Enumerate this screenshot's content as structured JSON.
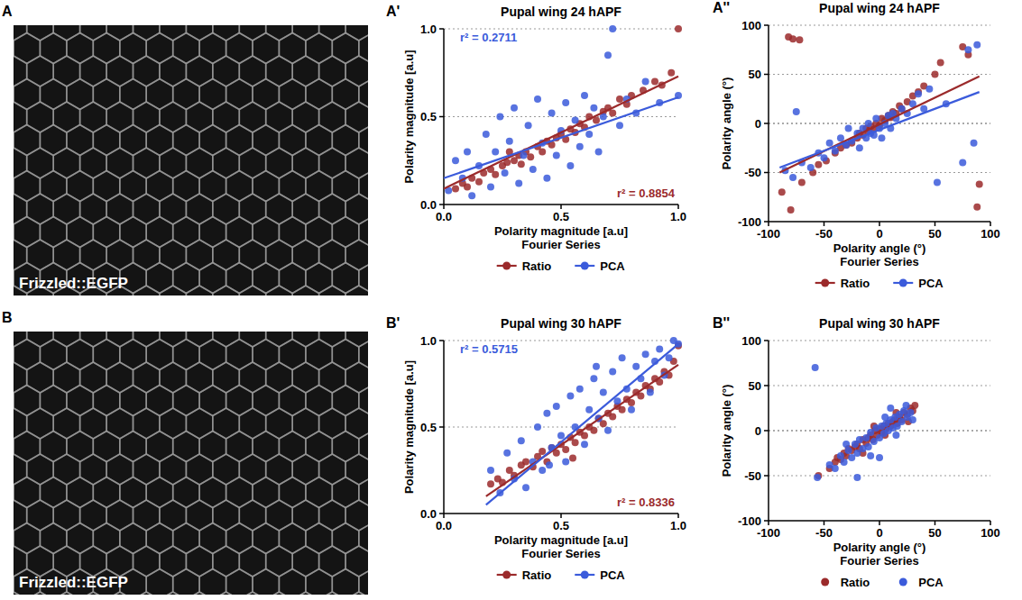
{
  "images": [
    {
      "letter": "A",
      "label": "Frizzled::EGFP"
    },
    {
      "letter": "B",
      "label": "Frizzled::EGFP"
    }
  ],
  "chart_data": [
    {
      "type": "scatter",
      "letter": "A'",
      "title": "Pupal wing 24 hAPF",
      "x_label": "Polarity magnitude [a.u]",
      "x_sublabel": "Fourier Series",
      "y_label": "Polarity magnitude [a.u]",
      "xlim": [
        0,
        1
      ],
      "xticks": [
        {
          "value": 0,
          "label": "0.0"
        },
        {
          "value": 0.5,
          "label": "0.5"
        },
        {
          "value": 1,
          "label": "1.0"
        }
      ],
      "ylim": [
        0,
        1
      ],
      "yticks": [
        {
          "value": 0,
          "label": "0.0"
        },
        {
          "value": 0.5,
          "label": "0.5"
        },
        {
          "value": 1,
          "label": "1.0"
        }
      ],
      "grid": true,
      "legend": "bottom",
      "annotations": [
        {
          "text": "r² = 0.2711",
          "color": "#3b5bdb"
        },
        {
          "text": "r² = 0.8854",
          "color": "#9b2a2b"
        }
      ],
      "series": [
        {
          "name": "Ratio",
          "color": "#9b2a2b",
          "marker": "circle",
          "x": [
            0.05,
            0.08,
            0.1,
            0.12,
            0.15,
            0.17,
            0.2,
            0.22,
            0.25,
            0.27,
            0.3,
            0.32,
            0.33,
            0.35,
            0.37,
            0.4,
            0.42,
            0.44,
            0.46,
            0.48,
            0.5,
            0.52,
            0.54,
            0.56,
            0.58,
            0.6,
            0.62,
            0.65,
            0.68,
            0.7,
            0.72,
            0.75,
            0.78,
            0.8,
            0.85,
            0.9,
            0.93,
            0.97,
            1.0,
            0.28
          ],
          "values": [
            0.09,
            0.12,
            0.1,
            0.15,
            0.13,
            0.18,
            0.2,
            0.17,
            0.22,
            0.24,
            0.25,
            0.28,
            0.23,
            0.3,
            0.27,
            0.33,
            0.3,
            0.36,
            0.34,
            0.38,
            0.4,
            0.37,
            0.43,
            0.41,
            0.46,
            0.44,
            0.5,
            0.48,
            0.53,
            0.55,
            0.52,
            0.6,
            0.57,
            0.62,
            0.65,
            0.7,
            0.68,
            0.75,
            1.0,
            0.3
          ],
          "fit": {
            "x": [
              0,
              1
            ],
            "values": [
              0.09,
              0.73
            ]
          }
        },
        {
          "name": "PCA",
          "color": "#3b5bdb",
          "marker": "circle",
          "x": [
            0.02,
            0.05,
            0.08,
            0.1,
            0.12,
            0.15,
            0.18,
            0.2,
            0.22,
            0.24,
            0.26,
            0.28,
            0.3,
            0.32,
            0.34,
            0.36,
            0.38,
            0.4,
            0.42,
            0.44,
            0.46,
            0.48,
            0.5,
            0.52,
            0.54,
            0.56,
            0.58,
            0.6,
            0.62,
            0.64,
            0.66,
            0.68,
            0.7,
            0.72,
            0.75,
            0.78,
            0.82,
            0.86,
            0.92,
            1.0
          ],
          "values": [
            0.08,
            0.25,
            0.15,
            0.3,
            0.05,
            0.22,
            0.4,
            0.1,
            0.3,
            0.5,
            0.18,
            0.36,
            0.55,
            0.12,
            0.28,
            0.45,
            0.2,
            0.6,
            0.35,
            0.15,
            0.52,
            0.28,
            0.42,
            0.58,
            0.22,
            0.48,
            0.33,
            0.62,
            0.4,
            0.55,
            0.3,
            0.5,
            0.85,
            1.0,
            0.45,
            0.6,
            0.52,
            0.7,
            0.58,
            0.62
          ],
          "fit": {
            "x": [
              0,
              1
            ],
            "values": [
              0.15,
              0.61
            ]
          }
        }
      ]
    },
    {
      "type": "scatter",
      "letter": "A''",
      "title": "Pupal wing 24 hAPF",
      "x_label": "Polarity angle (°)",
      "x_sublabel": "Fourier Series",
      "y_label": "Polarity angle (°)",
      "xlim": [
        -100,
        100
      ],
      "xticks": [
        -100,
        -50,
        0,
        50,
        100
      ],
      "ylim": [
        -100,
        100
      ],
      "yticks": [
        -100,
        -50,
        0,
        50,
        100
      ],
      "grid": true,
      "legend": "bottom",
      "annotations": [],
      "series": [
        {
          "name": "Ratio",
          "color": "#9b2a2b",
          "marker": "circle",
          "x": [
            -82,
            -78,
            -72,
            -88,
            -80,
            -70,
            -60,
            -55,
            -48,
            -40,
            -35,
            -30,
            -25,
            -20,
            -18,
            -15,
            -12,
            -10,
            -8,
            -5,
            -3,
            0,
            2,
            5,
            8,
            10,
            12,
            15,
            18,
            20,
            25,
            30,
            35,
            40,
            50,
            55,
            75,
            80,
            88,
            90
          ],
          "values": [
            88,
            86,
            85,
            -70,
            -88,
            -60,
            -50,
            -42,
            -38,
            -30,
            -25,
            -22,
            -20,
            -15,
            -10,
            -12,
            -5,
            -8,
            -3,
            -6,
            0,
            -2,
            5,
            3,
            8,
            6,
            12,
            10,
            18,
            15,
            22,
            28,
            32,
            38,
            50,
            62,
            78,
            70,
            -85,
            -62
          ],
          "fit": {
            "x": [
              -90,
              90
            ],
            "values": [
              -50,
              48
            ]
          }
        },
        {
          "name": "PCA",
          "color": "#3b5bdb",
          "marker": "circle",
          "x": [
            -85,
            -78,
            -75,
            -70,
            -62,
            -55,
            -50,
            -45,
            -40,
            -35,
            -30,
            -28,
            -25,
            -20,
            -18,
            -15,
            -12,
            -10,
            -8,
            -5,
            -3,
            0,
            2,
            5,
            8,
            10,
            12,
            15,
            20,
            25,
            30,
            35,
            40,
            45,
            52,
            60,
            75,
            80,
            85,
            88
          ],
          "values": [
            -48,
            -55,
            12,
            -40,
            -45,
            -30,
            -35,
            -20,
            -28,
            -15,
            -22,
            -5,
            -18,
            -10,
            -25,
            -5,
            -15,
            0,
            -10,
            -12,
            5,
            -5,
            -15,
            0,
            8,
            -5,
            10,
            5,
            15,
            10,
            20,
            30,
            15,
            35,
            -60,
            20,
            -40,
            75,
            -20,
            80
          ],
          "fit": {
            "x": [
              -90,
              90
            ],
            "values": [
              -45,
              32
            ]
          }
        }
      ]
    },
    {
      "type": "scatter",
      "letter": "B'",
      "title": "Pupal wing 30 hAPF",
      "x_label": "Polarity magnitude [a.u]",
      "x_sublabel": "Fourier Series",
      "y_label": "Polarity magnitude [a.u]",
      "xlim": [
        0,
        1
      ],
      "xticks": [
        {
          "value": 0,
          "label": "0.0"
        },
        {
          "value": 0.5,
          "label": "0.5"
        },
        {
          "value": 1,
          "label": "1.0"
        }
      ],
      "ylim": [
        0,
        1
      ],
      "yticks": [
        {
          "value": 0,
          "label": "0.0"
        },
        {
          "value": 0.5,
          "label": "0.5"
        },
        {
          "value": 1,
          "label": "1.0"
        }
      ],
      "grid": true,
      "legend": "bottom",
      "annotations": [
        {
          "text": "r² = 0.5715",
          "color": "#3b5bdb"
        },
        {
          "text": "r² = 0.8336",
          "color": "#9b2a2b"
        }
      ],
      "series": [
        {
          "name": "Ratio",
          "color": "#9b2a2b",
          "marker": "circle",
          "x": [
            0.2,
            0.23,
            0.25,
            0.28,
            0.3,
            0.33,
            0.35,
            0.38,
            0.4,
            0.42,
            0.44,
            0.46,
            0.48,
            0.5,
            0.52,
            0.54,
            0.56,
            0.58,
            0.6,
            0.62,
            0.64,
            0.66,
            0.68,
            0.7,
            0.72,
            0.74,
            0.76,
            0.78,
            0.8,
            0.82,
            0.84,
            0.86,
            0.88,
            0.9,
            0.92,
            0.94,
            0.96,
            0.98,
            1.0,
            0.55
          ],
          "values": [
            0.17,
            0.2,
            0.18,
            0.25,
            0.22,
            0.28,
            0.3,
            0.27,
            0.33,
            0.36,
            0.3,
            0.38,
            0.35,
            0.4,
            0.37,
            0.44,
            0.41,
            0.47,
            0.45,
            0.5,
            0.48,
            0.55,
            0.52,
            0.58,
            0.56,
            0.62,
            0.6,
            0.66,
            0.64,
            0.7,
            0.68,
            0.74,
            0.72,
            0.78,
            0.76,
            0.82,
            0.8,
            0.88,
            0.97,
            0.32
          ],
          "fit": {
            "x": [
              0.18,
              1
            ],
            "values": [
              0.1,
              0.86
            ]
          }
        },
        {
          "name": "PCA",
          "color": "#3b5bdb",
          "marker": "circle",
          "x": [
            0.2,
            0.24,
            0.27,
            0.3,
            0.33,
            0.35,
            0.38,
            0.4,
            0.42,
            0.44,
            0.46,
            0.48,
            0.5,
            0.52,
            0.54,
            0.56,
            0.58,
            0.6,
            0.62,
            0.64,
            0.66,
            0.68,
            0.7,
            0.72,
            0.74,
            0.76,
            0.78,
            0.8,
            0.82,
            0.84,
            0.86,
            0.88,
            0.9,
            0.92,
            0.94,
            0.96,
            0.98,
            1.0,
            0.45,
            0.65
          ],
          "values": [
            0.25,
            0.12,
            0.35,
            0.2,
            0.42,
            0.15,
            0.3,
            0.5,
            0.25,
            0.58,
            0.38,
            0.62,
            0.45,
            0.3,
            0.68,
            0.5,
            0.72,
            0.4,
            0.6,
            0.78,
            0.55,
            0.7,
            0.48,
            0.82,
            0.65,
            0.9,
            0.72,
            0.6,
            0.85,
            0.78,
            0.92,
            0.7,
            0.88,
            0.95,
            0.8,
            0.9,
            1.0,
            0.98,
            0.28,
            0.85
          ],
          "fit": {
            "x": [
              0.18,
              1
            ],
            "values": [
              0.05,
              0.98
            ]
          }
        }
      ]
    },
    {
      "type": "scatter",
      "letter": "B''",
      "title": "Pupal wing 30 hAPF",
      "x_label": "Polarity angle (°)",
      "x_sublabel": "Fourier Series",
      "y_label": "Polarity angle (°)",
      "xlim": [
        -100,
        100
      ],
      "xticks": [
        -100,
        -50,
        0,
        50,
        100
      ],
      "ylim": [
        -100,
        100
      ],
      "yticks": [
        -100,
        -50,
        0,
        50,
        100
      ],
      "grid": true,
      "legend": "bottom",
      "annotations": [],
      "series": [
        {
          "name": "Ratio",
          "color": "#9b2a2b",
          "marker": "circle",
          "x": [
            -55,
            -45,
            -40,
            -38,
            -35,
            -32,
            -30,
            -28,
            -25,
            -22,
            -20,
            -18,
            -15,
            -12,
            -10,
            -8,
            -6,
            -4,
            -2,
            0,
            2,
            4,
            6,
            8,
            10,
            12,
            14,
            16,
            18,
            20,
            22,
            25,
            28,
            30,
            32,
            -15,
            -5,
            5,
            15,
            26
          ],
          "values": [
            -50,
            -42,
            -35,
            -30,
            -32,
            -25,
            -28,
            -20,
            -22,
            -18,
            -15,
            -20,
            -10,
            -14,
            -8,
            -5,
            -10,
            0,
            -5,
            2,
            -2,
            5,
            2,
            8,
            5,
            10,
            12,
            8,
            15,
            12,
            20,
            18,
            25,
            22,
            28,
            -25,
            5,
            -5,
            20,
            10
          ]
        },
        {
          "name": "PCA",
          "color": "#3b5bdb",
          "marker": "circle",
          "x": [
            -56,
            -58,
            -45,
            -40,
            -35,
            -32,
            -28,
            -25,
            -22,
            -20,
            -18,
            -15,
            -12,
            -10,
            -8,
            -5,
            -3,
            0,
            2,
            4,
            6,
            8,
            10,
            12,
            14,
            16,
            18,
            20,
            22,
            25,
            28,
            30,
            5,
            -20,
            0,
            10,
            -30,
            24,
            -8,
            15
          ],
          "values": [
            -52,
            70,
            -38,
            -42,
            -28,
            -35,
            -22,
            -30,
            -15,
            -25,
            -10,
            -20,
            -8,
            -18,
            -2,
            -12,
            3,
            -8,
            5,
            -3,
            8,
            0,
            12,
            3,
            15,
            5,
            18,
            10,
            22,
            15,
            20,
            12,
            15,
            -52,
            -30,
            25,
            -15,
            28,
            -28,
            -5
          ]
        }
      ]
    }
  ]
}
